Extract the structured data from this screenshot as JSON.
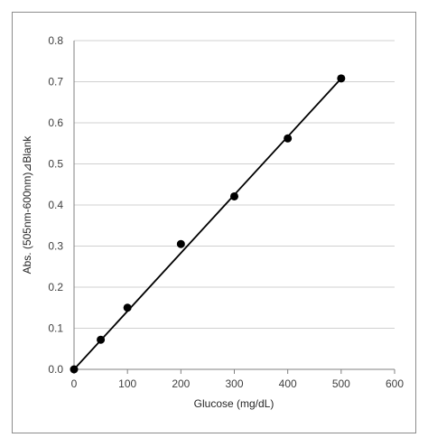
{
  "chart_data": {
    "type": "scatter",
    "title": "",
    "xlabel": "Glucose (mg/dL)",
    "ylabel": "Abs. (505nm-600nm)⊿Blank",
    "xlim": [
      0,
      600
    ],
    "ylim": [
      0,
      0.8
    ],
    "x_ticks": [
      "0",
      "100",
      "200",
      "300",
      "400",
      "500",
      "600"
    ],
    "y_ticks": [
      "0.0",
      "0.1",
      "0.2",
      "0.3",
      "0.4",
      "0.5",
      "0.6",
      "0.7",
      "0.8"
    ],
    "grid": "horizontal",
    "legend": "none",
    "series": [
      {
        "x": [
          0,
          50,
          100,
          200,
          300,
          400,
          500
        ],
        "y": [
          0.0,
          0.072,
          0.15,
          0.305,
          0.421,
          0.562,
          0.708
        ]
      }
    ],
    "trendline": {
      "type": "linear",
      "x": [
        0,
        500
      ],
      "y": [
        0.0,
        0.708
      ]
    },
    "colors": {
      "marker": "#000000",
      "line": "#000000",
      "grid": "#d0d0d0",
      "axis": "#808080",
      "text": "#404040"
    }
  }
}
